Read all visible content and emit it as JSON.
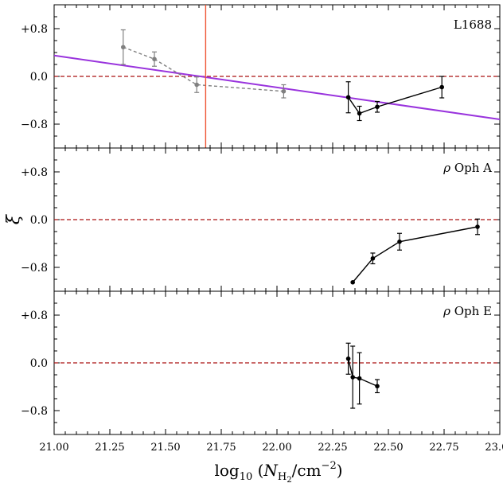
{
  "chart_data": [
    {
      "type": "line",
      "panel_label": "L1688",
      "xlim": [
        21.0,
        23.0
      ],
      "ylim": [
        -1.2,
        1.2
      ],
      "yticks": [
        0.8,
        0.0,
        -0.8
      ],
      "ytick_labels": [
        "+0.8",
        "0.0",
        "−0.8"
      ],
      "reference_line_y": 0.0,
      "vertical_line_x": 21.68,
      "fit_line": {
        "x": [
          21.0,
          23.0
        ],
        "y": [
          0.35,
          -0.72
        ]
      },
      "series": [
        {
          "style": "gray-dashed",
          "x": [
            21.31,
            21.45,
            21.64,
            22.03
          ],
          "y": [
            0.49,
            0.29,
            -0.14,
            -0.25
          ],
          "err": [
            0.29,
            0.12,
            0.13,
            0.11
          ]
        },
        {
          "style": "black-solid",
          "x": [
            22.32,
            22.37,
            22.45,
            22.74
          ],
          "y": [
            -0.35,
            -0.62,
            -0.51,
            -0.18
          ],
          "err": [
            0.26,
            0.12,
            0.09,
            0.18
          ]
        }
      ]
    },
    {
      "type": "line",
      "panel_label": "ρ Oph A",
      "xlim": [
        21.0,
        23.0
      ],
      "ylim": [
        -1.2,
        1.2
      ],
      "yticks": [
        0.8,
        0.0,
        -0.8
      ],
      "ytick_labels": [
        "+0.8",
        "0.0",
        "−0.8"
      ],
      "reference_line_y": 0.0,
      "series": [
        {
          "style": "black-solid",
          "x": [
            22.34,
            22.43,
            22.55,
            22.9
          ],
          "y": [
            -1.05,
            -0.65,
            -0.37,
            -0.12
          ],
          "err": [
            0.0,
            0.09,
            0.14,
            0.13
          ]
        }
      ]
    },
    {
      "type": "line",
      "panel_label": "ρ Oph E",
      "xlim": [
        21.0,
        23.0
      ],
      "ylim": [
        -1.2,
        1.2
      ],
      "yticks": [
        0.8,
        0.0,
        -0.8
      ],
      "ytick_labels": [
        "+0.8",
        "0.0",
        "−0.8"
      ],
      "reference_line_y": 0.0,
      "series": [
        {
          "style": "black-solid",
          "x": [
            22.32,
            22.34,
            22.37,
            22.45
          ],
          "y": [
            0.07,
            -0.24,
            -0.26,
            -0.39
          ],
          "err": [
            0.26,
            0.52,
            0.43,
            0.11
          ]
        }
      ]
    }
  ],
  "x_axis": {
    "ticks": [
      21.0,
      21.25,
      21.5,
      21.75,
      22.0,
      22.25,
      22.5,
      22.75,
      23.0
    ],
    "tick_labels": [
      "21.00",
      "21.25",
      "21.50",
      "21.75",
      "22.00",
      "22.25",
      "22.50",
      "22.75",
      "23.00"
    ],
    "label": "log10 (NH2/cm−2)"
  },
  "y_axis": {
    "label": "ξ"
  },
  "colors": {
    "fit_line": "#9933dd",
    "vertical_line": "#ee5533",
    "reference_line": "#aa1111",
    "gray_series": "#808080",
    "black_series": "#000000"
  }
}
